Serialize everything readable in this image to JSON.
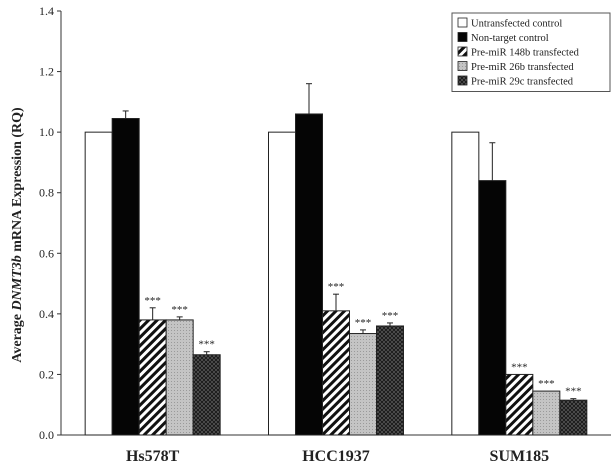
{
  "chart_data": {
    "type": "bar",
    "title": "",
    "xlabel": "",
    "ylabel_parts": [
      "Average ",
      "DNMT3b",
      " mRNA Expression (RQ)"
    ],
    "ylim": [
      0,
      1.4
    ],
    "yticks": [
      "0.0",
      "0.2",
      "0.4",
      "0.6",
      "0.8",
      "1.0",
      "1.2",
      "1.4"
    ],
    "grid": false,
    "legend_position": "top-right",
    "categories": [
      "Hs578T",
      "HCC1937",
      "SUM185"
    ],
    "series": [
      {
        "name": "Untransfected control",
        "values": [
          1.0,
          1.0,
          1.0
        ],
        "errors": [
          0,
          0,
          0
        ],
        "annotations": [
          "",
          "",
          ""
        ],
        "pattern": "white"
      },
      {
        "name": "Non-target control",
        "values": [
          1.045,
          1.06,
          0.84
        ],
        "errors": [
          0.025,
          0.1,
          0.125
        ],
        "annotations": [
          "",
          "",
          ""
        ],
        "pattern": "black"
      },
      {
        "name": "Pre-miR 148b transfected",
        "values": [
          0.38,
          0.41,
          0.2
        ],
        "errors": [
          0.04,
          0.055,
          0.0
        ],
        "annotations": [
          "***",
          "***",
          "***"
        ],
        "pattern": "diag"
      },
      {
        "name": "Pre-miR 26b transfected",
        "values": [
          0.38,
          0.335,
          0.145
        ],
        "errors": [
          0.01,
          0.012,
          0.0
        ],
        "annotations": [
          "***",
          "***",
          "***"
        ],
        "pattern": "gray"
      },
      {
        "name": "Pre-miR 29c transfected",
        "values": [
          0.265,
          0.36,
          0.115
        ],
        "errors": [
          0.01,
          0.01,
          0.005
        ],
        "annotations": [
          "***",
          "***",
          "***"
        ],
        "pattern": "crosshatch"
      }
    ]
  },
  "colors": {
    "white_fill": "#ffffff",
    "black_fill": "#050505",
    "gray_fill": "#bdbdbd",
    "axis": "#333333"
  }
}
